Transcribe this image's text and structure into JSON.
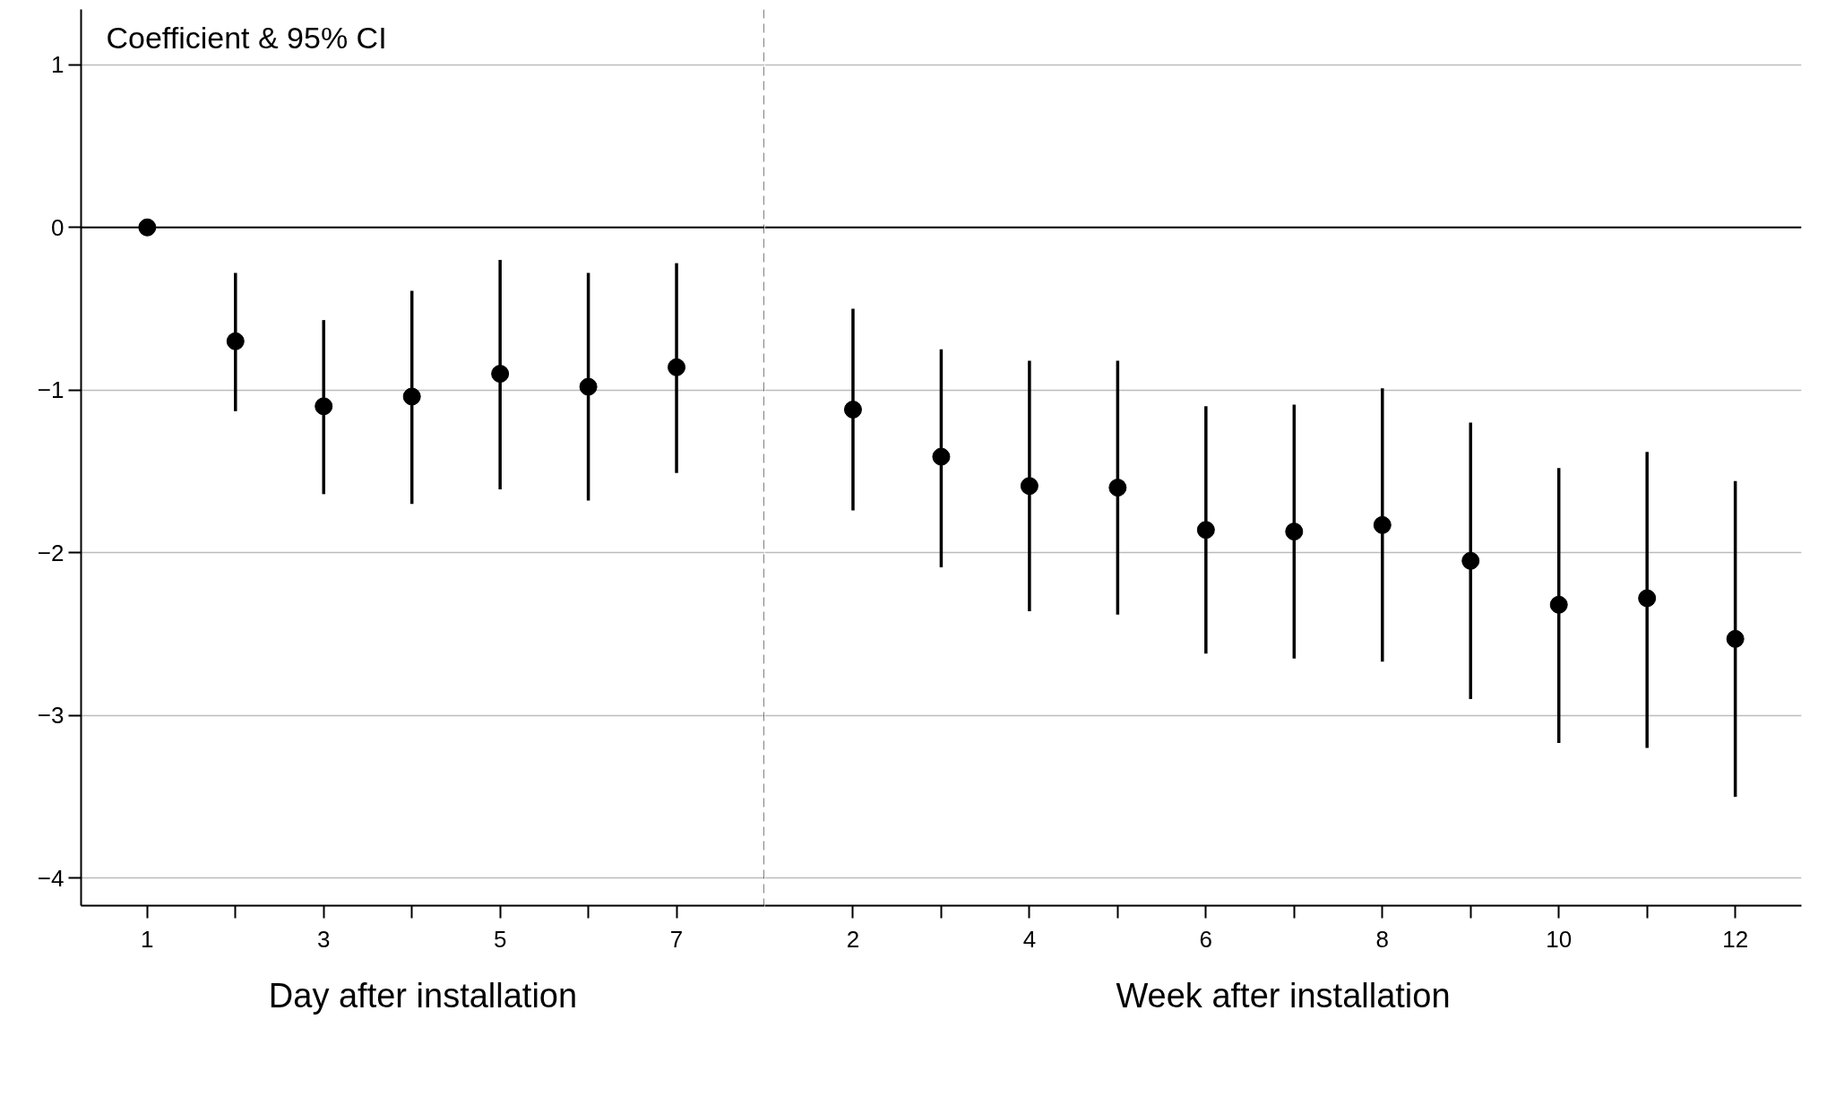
{
  "chart_data": [
    {
      "type": "scatter",
      "ylabel": "Coefficient & 95% CI",
      "xlabel": "Day after installation",
      "x": [
        1,
        2,
        3,
        4,
        5,
        6,
        7
      ],
      "values": [
        0,
        -0.7,
        -1.1,
        -1.04,
        -0.9,
        -0.98,
        -0.86
      ],
      "errors": [
        null,
        [
          -1.13,
          -0.28
        ],
        [
          -1.64,
          -0.57
        ],
        [
          -1.7,
          -0.39
        ],
        [
          -1.61,
          -0.2
        ],
        [
          -1.68,
          -0.28
        ],
        [
          -1.51,
          -0.22
        ]
      ],
      "color": "#000000",
      "marker": "circle",
      "xlim": [
        0.25,
        8
      ],
      "ylim": [
        -4.17,
        1.34
      ],
      "xticks": [
        1,
        {
          "value": 2,
          "label": null
        },
        3,
        {
          "value": 4,
          "label": null
        },
        5,
        {
          "value": 6,
          "label": null
        },
        7
      ],
      "yticks": [
        -4,
        -3,
        -2,
        -1,
        0,
        1
      ],
      "ref_lines": [
        {
          "axis": "y",
          "value": 0,
          "color": "#000000",
          "line_style": "solid"
        },
        {
          "axis": "x",
          "value": 8,
          "color": "#000000",
          "line_style": "dashed"
        }
      ],
      "grid": "y"
    },
    {
      "type": "scatter",
      "xlabel": "Week after installation",
      "x": [
        2,
        3,
        4,
        5,
        6,
        7,
        8,
        9,
        10,
        11,
        12
      ],
      "values": [
        -1.12,
        -1.41,
        -1.59,
        -1.6,
        -1.86,
        -1.87,
        -1.83,
        -2.05,
        -2.32,
        -2.28,
        -2.53
      ],
      "errors": [
        [
          -1.74,
          -0.5
        ],
        [
          -2.09,
          -0.75
        ],
        [
          -2.36,
          -0.82
        ],
        [
          -2.38,
          -0.82
        ],
        [
          -2.62,
          -1.1
        ],
        [
          -2.65,
          -1.09
        ],
        [
          -2.67,
          -0.99
        ],
        [
          -2.9,
          -1.2
        ],
        [
          -3.17,
          -1.48
        ],
        [
          -3.2,
          -1.38
        ],
        [
          -3.5,
          -1.56
        ]
      ],
      "color": "#000000",
      "marker": "circle",
      "xlim": [
        1,
        12.75
      ],
      "ylim": [
        -4.17,
        1.34
      ],
      "xticks": [
        2,
        {
          "value": 3,
          "label": null
        },
        4,
        {
          "value": 5,
          "label": null
        },
        6,
        {
          "value": 7,
          "label": null
        },
        8,
        {
          "value": 9,
          "label": null
        },
        10,
        {
          "value": 11,
          "label": null
        },
        12
      ],
      "yticks": [
        -4,
        -3,
        -2,
        -1,
        0,
        1
      ],
      "tick_labels": "x",
      "ref_lines": [
        {
          "axis": "y",
          "value": 0,
          "color": "#000000",
          "line_style": "solid"
        }
      ],
      "grid": "y"
    }
  ]
}
